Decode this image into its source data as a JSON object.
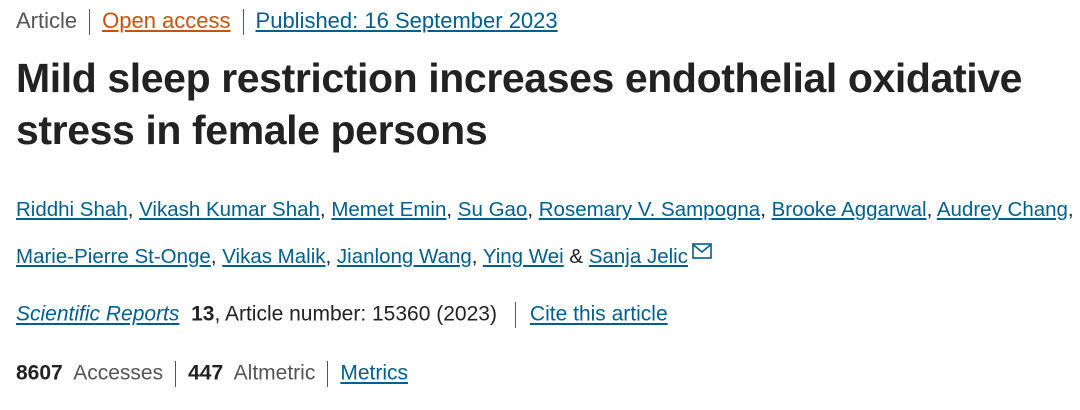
{
  "header": {
    "article_type": "Article",
    "access": "Open access",
    "published": "Published: 16 September 2023"
  },
  "title": "Mild sleep restriction increases endothelial oxidative stress in female persons",
  "authors": {
    "names": [
      "Riddhi Shah",
      "Vikash Kumar Shah",
      "Memet Emin",
      "Su Gao",
      "Rosemary V. Sampogna",
      "Brooke Aggarwal",
      "Audrey Chang",
      "Marie-Pierre St-Onge",
      "Vikas Malik",
      "Jianlong Wang",
      "Ying Wei",
      "Sanja Jelic"
    ],
    "separator": ",",
    "conjunction": "&"
  },
  "citation": {
    "journal": "Scientific Reports",
    "volume": "13",
    "details": ", Article number: 15360 (2023)",
    "cite_link": "Cite this article"
  },
  "metrics": {
    "accesses": 8607,
    "accesses_label": "Accesses",
    "altmetric": 447,
    "altmetric_label": "Altmetric",
    "link": "Metrics"
  }
}
